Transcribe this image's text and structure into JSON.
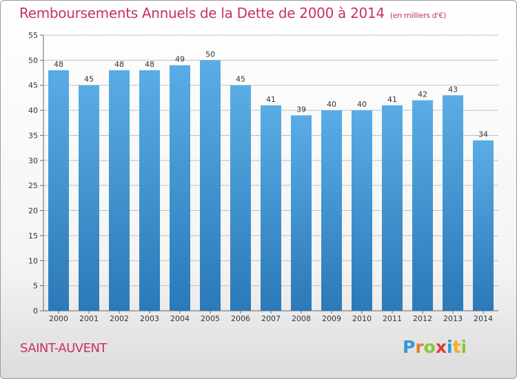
{
  "header": {
    "title": "Remboursements Annuels de la Dette de 2000 à 2014",
    "subtitle": "(en milliers d'€)"
  },
  "footer": {
    "commune": "SAINT-AUVENT",
    "logo": {
      "letters": [
        "P",
        "r",
        "o",
        "x",
        "i",
        "t",
        "i"
      ],
      "colors": [
        "#2e9ad9",
        "#e67e22",
        "#8cc63f",
        "#e53935",
        "#2e9ad9",
        "#f2b01e",
        "#8cc63f"
      ]
    }
  },
  "colors": {
    "title": "#c8325a",
    "bar_top": "#5aace6",
    "bar_bottom": "#2b79b8",
    "grid": "#bfbfbf"
  },
  "chart_data": {
    "type": "bar",
    "categories": [
      "2000",
      "2001",
      "2002",
      "2003",
      "2004",
      "2005",
      "2006",
      "2007",
      "2008",
      "2009",
      "2010",
      "2011",
      "2012",
      "2013",
      "2014"
    ],
    "values": [
      48,
      45,
      48,
      48,
      49,
      50,
      45,
      41,
      39,
      40,
      40,
      41,
      42,
      43,
      34
    ],
    "ylim": [
      0,
      55
    ],
    "yticks": [
      0,
      5,
      10,
      15,
      20,
      25,
      30,
      35,
      40,
      45,
      50,
      55
    ],
    "grid": true,
    "title": "Remboursements Annuels de la Dette de 2000 à 2014",
    "subtitle": "(en milliers d'€)"
  }
}
